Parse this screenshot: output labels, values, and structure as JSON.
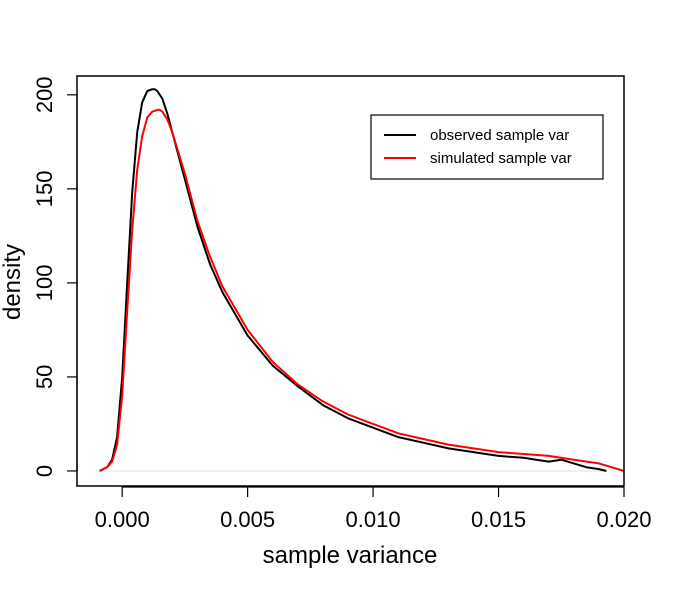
{
  "chart_data": {
    "type": "line",
    "xlabel": "sample variance",
    "ylabel": "density",
    "xlim": [
      -0.0018,
      0.02
    ],
    "ylim": [
      -8,
      210
    ],
    "x_ticks": [
      "0.000",
      "0.005",
      "0.010",
      "0.015",
      "0.020"
    ],
    "y_ticks": [
      "0",
      "50",
      "100",
      "150",
      "200"
    ],
    "grid": false,
    "legend_position": "top-right",
    "series": [
      {
        "name": "observed sample var",
        "color": "#000000",
        "x": [
          -0.0009,
          -0.0006,
          -0.0004,
          -0.0002,
          0.0,
          0.0002,
          0.0004,
          0.0006,
          0.0008,
          0.001,
          0.0012,
          0.0013,
          0.0014,
          0.0016,
          0.0018,
          0.002,
          0.0025,
          0.003,
          0.0035,
          0.004,
          0.005,
          0.006,
          0.007,
          0.008,
          0.009,
          0.01,
          0.011,
          0.012,
          0.013,
          0.014,
          0.015,
          0.016,
          0.0165,
          0.017,
          0.0175,
          0.018,
          0.0185,
          0.019,
          0.0193
        ],
        "y": [
          0,
          2,
          6,
          18,
          50,
          100,
          148,
          180,
          196,
          202,
          203,
          203,
          202,
          198,
          190,
          180,
          155,
          130,
          110,
          95,
          72,
          56,
          45,
          35,
          28,
          23,
          18,
          15,
          12,
          10,
          8,
          7,
          6,
          5,
          6,
          4,
          2,
          1,
          0
        ]
      },
      {
        "name": "simulated sample var",
        "color": "#ff0000",
        "x": [
          -0.0009,
          -0.0006,
          -0.0004,
          -0.0002,
          0.0,
          0.0002,
          0.0004,
          0.0006,
          0.0008,
          0.001,
          0.0012,
          0.0014,
          0.0015,
          0.0016,
          0.0018,
          0.002,
          0.0025,
          0.003,
          0.0035,
          0.004,
          0.005,
          0.006,
          0.007,
          0.008,
          0.009,
          0.01,
          0.011,
          0.012,
          0.013,
          0.014,
          0.015,
          0.016,
          0.017,
          0.018,
          0.019,
          0.0195,
          0.02
        ],
        "y": [
          0,
          2,
          5,
          14,
          40,
          85,
          128,
          160,
          178,
          188,
          191,
          192,
          192,
          191,
          187,
          180,
          158,
          133,
          114,
          98,
          75,
          58,
          46,
          37,
          30,
          25,
          20,
          17,
          14,
          12,
          10,
          9,
          8,
          6,
          4,
          2,
          0
        ]
      }
    ]
  }
}
